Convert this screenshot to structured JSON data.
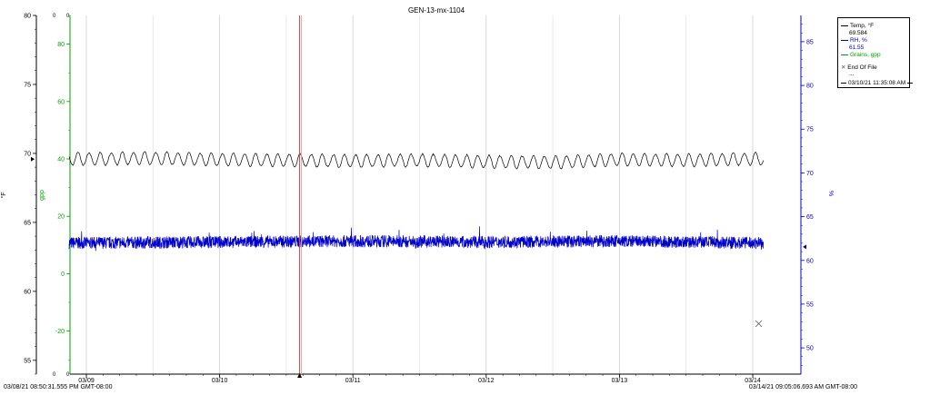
{
  "chart_data": {
    "type": "line",
    "title": "GEN-13-mx-1104",
    "x_start": "03/08/21 08:50:31.555 PM GMT-08:00",
    "x_end": "03/14/21 09:05:06.693 AM GMT-08:00",
    "x_ticks": [
      "03/09",
      "03/10",
      "03/11",
      "03/12",
      "03/13",
      "03/14"
    ],
    "left_axis_temp": {
      "label": "°F",
      "ticks": [
        "55",
        "60",
        "65",
        "70",
        "75",
        "80"
      ],
      "ylim": [
        54,
        80
      ]
    },
    "left_axis_gpp": {
      "label": "gpp",
      "ticks": [
        "-20",
        "0",
        "20",
        "40",
        "60",
        "80"
      ],
      "ylim": [
        -35,
        90
      ]
    },
    "right_axis_rh": {
      "label": "%",
      "ticks": [
        "50",
        "55",
        "60",
        "65",
        "70",
        "75",
        "80",
        "85"
      ],
      "ylim": [
        47,
        88
      ]
    },
    "series": [
      {
        "name": "Temp, °F",
        "color": "#000000",
        "axis": "left_temp",
        "mean": 69.6,
        "amplitude": 0.45,
        "cycles_per_day": 12,
        "x": [
          0,
          0.5,
          1,
          1.5,
          2,
          2.5,
          3,
          3.5,
          4,
          4.5,
          5,
          5.2
        ],
        "y": [
          69.6,
          69.65,
          69.55,
          69.5,
          69.45,
          69.5,
          69.4,
          69.35,
          69.55,
          69.5,
          69.6,
          69.55
        ]
      },
      {
        "name": "RH, %",
        "color": "#0000cc",
        "axis": "right_rh",
        "mean": 62,
        "amplitude": 0.7,
        "x": [
          0,
          1,
          2,
          3,
          4,
          5,
          5.2
        ],
        "y": [
          62,
          62.1,
          62.2,
          62.1,
          62.2,
          62,
          62.1
        ]
      },
      {
        "name": "Grains, gpp",
        "color": "#00a000",
        "axis": "left_gpp",
        "values": []
      }
    ],
    "legend": {
      "position": "top-right",
      "entries": [
        {
          "label": "Temp, °F",
          "value": "69.584",
          "color": "#000000"
        },
        {
          "label": "RH, %",
          "value": "61.55",
          "color": "#0000cc"
        },
        {
          "label": "Grains, gpp",
          "color": "#00a000"
        }
      ],
      "eof_label": "End Of File",
      "ellipsis": "...",
      "marker_time": "03/10/21 11:35:08 AM"
    },
    "marker_x": 1.6,
    "grid": "vertical"
  }
}
